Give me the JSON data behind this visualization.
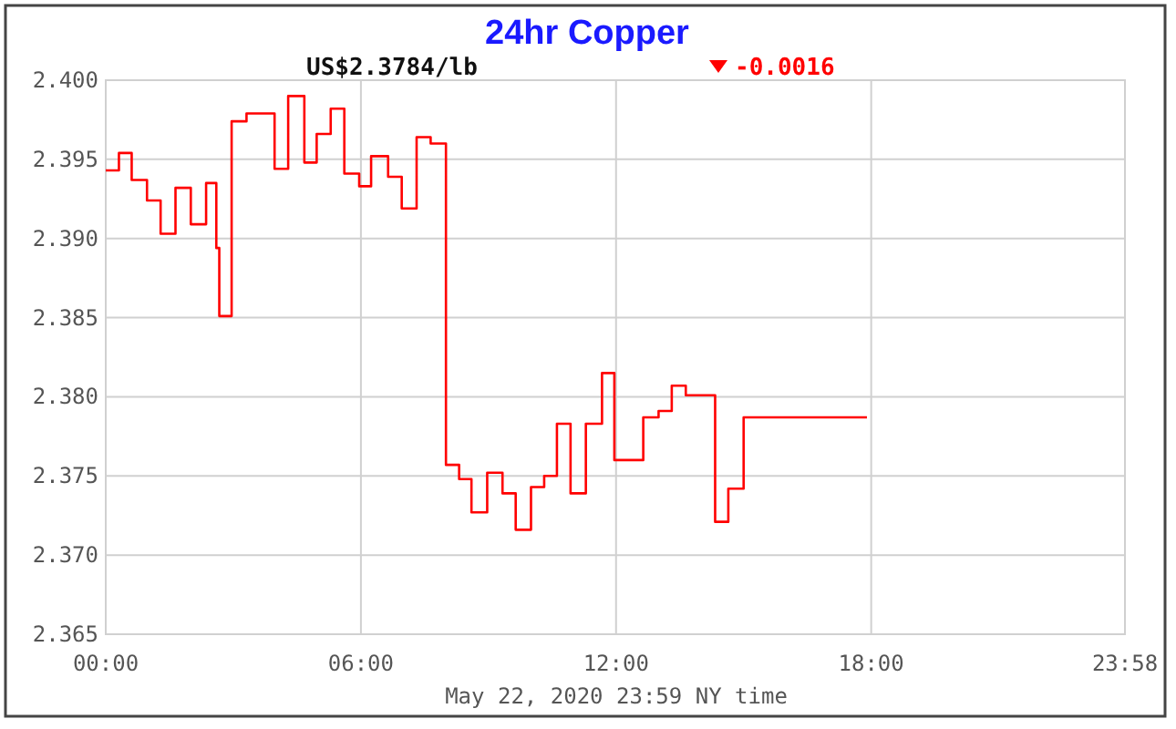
{
  "chart_data": {
    "type": "step",
    "title": "24hr Copper",
    "xlabel": "May 22, 2020 23:59 NY time",
    "annotations": [
      "US$2.3784/lb",
      "-0.0016"
    ],
    "x": [
      0,
      0.31,
      0.61,
      0.97,
      1.29,
      1.64,
      2.0,
      2.36,
      2.6,
      2.67,
      2.96,
      3.31,
      3.97,
      4.29,
      4.67,
      4.96,
      5.29,
      5.61,
      5.96,
      6.24,
      6.64,
      6.96,
      7.31,
      7.64,
      8.0,
      8.31,
      8.6,
      8.97,
      9.33,
      9.64,
      10.0,
      10.31,
      10.61,
      10.93,
      11.29,
      11.67,
      11.96,
      12.64,
      13.0,
      13.31,
      13.64,
      14.33,
      14.64,
      15.0,
      17.9
    ],
    "series": [
      {
        "color": "#ff0000",
        "values": [
          2.3943,
          2.3954,
          2.3937,
          2.3924,
          2.3903,
          2.3932,
          2.3909,
          2.3935,
          2.3894,
          2.3851,
          2.3974,
          2.3979,
          2.3944,
          2.399,
          2.3948,
          2.3966,
          2.3982,
          2.3941,
          2.3933,
          2.3952,
          2.3939,
          2.3919,
          2.3964,
          2.396,
          2.3757,
          2.3748,
          2.3727,
          2.3752,
          2.3739,
          2.3716,
          2.3743,
          2.375,
          2.3783,
          2.3739,
          2.3783,
          2.3815,
          2.376,
          2.3787,
          2.3791,
          2.3807,
          2.3801,
          2.3721,
          2.3742,
          2.3787,
          2.3787
        ]
      }
    ],
    "xlim": [
      0,
      23.967
    ],
    "xticks": [
      {
        "value": 0,
        "label": "00:00"
      },
      {
        "value": 6,
        "label": "06:00"
      },
      {
        "value": 12,
        "label": "12:00"
      },
      {
        "value": 18,
        "label": "18:00"
      },
      {
        "value": 23.967,
        "label": "23:58"
      }
    ],
    "ylim": [
      2.365,
      2.4
    ],
    "yticks": [
      {
        "value": 2.365,
        "label": "2.365"
      },
      {
        "value": 2.37,
        "label": "2.370"
      },
      {
        "value": 2.375,
        "label": "2.375"
      },
      {
        "value": 2.38,
        "label": "2.380"
      },
      {
        "value": 2.385,
        "label": "2.385"
      },
      {
        "value": 2.39,
        "label": "2.390"
      },
      {
        "value": 2.395,
        "label": "2.395"
      },
      {
        "value": 2.4,
        "label": "2.400"
      }
    ],
    "grid": true
  }
}
